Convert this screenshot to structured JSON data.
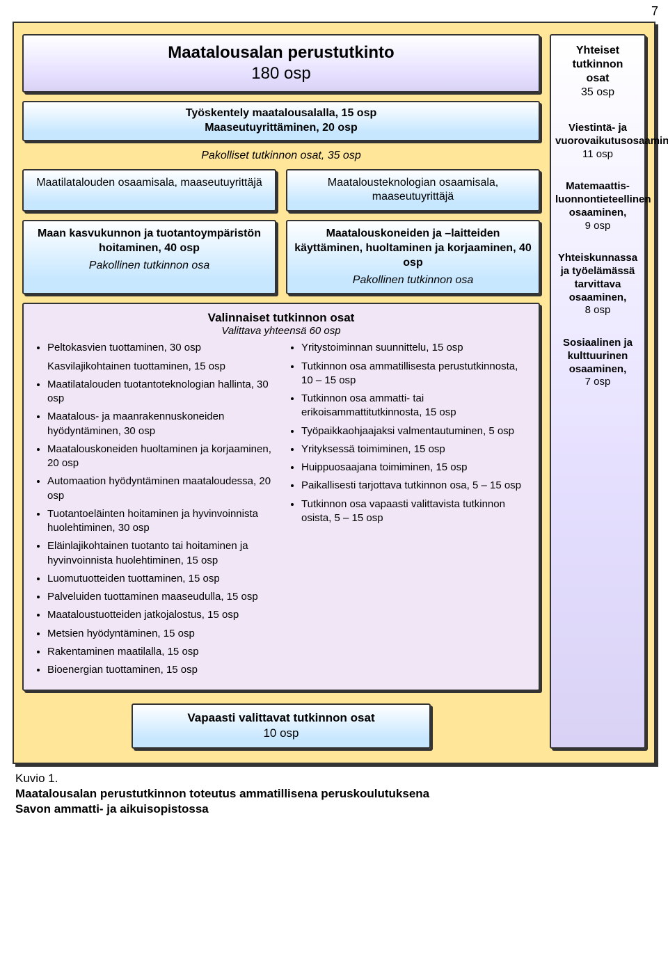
{
  "page_number": "7",
  "colors": {
    "outer_bg": "#ffe699",
    "border": "#333333",
    "purple_gradient_top": "#ffffff",
    "purple_gradient_bottom": "#d9d2f5",
    "blue_gradient_top": "#ffffff",
    "blue_gradient_bottom": "#c7e7ff",
    "optional_bg": "#f0e6f5"
  },
  "title": {
    "line1": "Maatalousalan perustutkinto",
    "line2": "180 osp"
  },
  "subtitle": {
    "line1": "Työskentely maatalousalalla, 15 osp",
    "line2": "Maaseutuyrittäminen, 20 osp"
  },
  "mandatory_label": "Pakolliset tutkinnon osat, 35 osp",
  "branches": {
    "left": "Maatilatalouden osaamisala, maaseutuyrittäjä",
    "right": "Maatalousteknologian osaamisala, maaseutuyrittäjä"
  },
  "modules": {
    "left": {
      "title": "Maan kasvukunnon ja tuotantoympäristön hoitaminen, 40 osp",
      "sub": "Pakollinen tutkinnon osa"
    },
    "right": {
      "title": "Maatalouskoneiden ja –laitteiden käyttäminen, huoltaminen ja korjaaminen, 40 osp",
      "sub": "Pakollinen tutkinnon osa"
    }
  },
  "optional": {
    "heading": "Valinnaiset tutkinnon osat",
    "sub": "Valittava yhteensä 60 osp",
    "left_items": [
      {
        "text": "Peltokasvien tuottaminen, 30 osp",
        "bullet": true
      },
      {
        "text": "Kasvilajikohtainen tuottaminen, 15 osp",
        "bullet": false
      },
      {
        "text": "Maatilatalouden tuotantoteknologian hallinta, 30 osp",
        "bullet": true
      },
      {
        "text": "Maatalous- ja maanrakennuskoneiden hyödyntäminen, 30 osp",
        "bullet": true
      },
      {
        "text": "Maatalouskoneiden huoltaminen ja korjaaminen, 20 osp",
        "bullet": true
      },
      {
        "text": "Automaation hyödyntäminen maataloudessa, 20 osp",
        "bullet": true
      },
      {
        "text": "Tuotantoeläinten hoitaminen ja hyvinvoinnista huolehtiminen, 30 osp",
        "bullet": true
      },
      {
        "text": "Eläinlajikohtainen tuotanto tai hoitaminen ja hyvinvoinnista huolehtiminen, 15 osp",
        "bullet": true
      },
      {
        "text": "Luomutuotteiden tuottaminen, 15 osp",
        "bullet": true
      },
      {
        "text": "Palveluiden tuottaminen maaseudulla, 15 osp",
        "bullet": true
      },
      {
        "text": "Maataloustuotteiden jatkojalostus, 15 osp",
        "bullet": true
      },
      {
        "text": "Metsien hyödyntäminen, 15 osp",
        "bullet": true
      },
      {
        "text": "Rakentaminen maatilalla, 15 osp",
        "bullet": true
      },
      {
        "text": "Bioenergian tuottaminen, 15 osp",
        "bullet": true
      }
    ],
    "right_items": [
      {
        "text": "Yritystoiminnan suunnittelu, 15 osp",
        "bullet": true
      },
      {
        "text": "Tutkinnon osa ammatillisesta perustutkinnosta, 10 – 15 osp",
        "bullet": true
      },
      {
        "text": "Tutkinnon osa ammatti- tai erikoisammattitutkinnosta, 15 osp",
        "bullet": true
      },
      {
        "text": "Työpaikkaohjaajaksi valmentautuminen, 5 osp",
        "bullet": true
      },
      {
        "text": "Yrityksessä toimiminen, 15 osp",
        "bullet": true
      },
      {
        "text": "Huippuosaajana toimiminen, 15 osp",
        "bullet": true
      },
      {
        "text": "Paikallisesti tarjottava tutkinnon osa, 5 – 15 osp",
        "bullet": true
      },
      {
        "text": "Tutkinnon osa vapaasti valittavista tutkinnon osista, 5 – 15 osp",
        "bullet": true
      }
    ]
  },
  "free_choice": {
    "title": "Vapaasti valittavat tutkinnon osat",
    "sub": "10 osp"
  },
  "sidebar": {
    "head_lines": [
      "Yhteiset",
      "tutkinnon",
      "osat",
      "35 osp"
    ],
    "items": [
      {
        "title": "Viestintä- ja vuorovaikutusosaaminen,",
        "sub": "11 osp"
      },
      {
        "title": "Matemaattis-luonnontieteellinen osaaminen,",
        "sub": "9 osp"
      },
      {
        "title": "Yhteiskunnassa ja työelämässä tarvittava osaaminen,",
        "sub": "8 osp"
      },
      {
        "title": "Sosiaalinen ja kulttuurinen osaaminen,",
        "sub": "7 osp"
      }
    ]
  },
  "caption": {
    "line1": "Kuvio 1.",
    "line2": "Maatalousalan perustutkinnon toteutus ammatillisena peruskoulutuksena",
    "line3": "Savon ammatti- ja aikuisopistossa"
  }
}
